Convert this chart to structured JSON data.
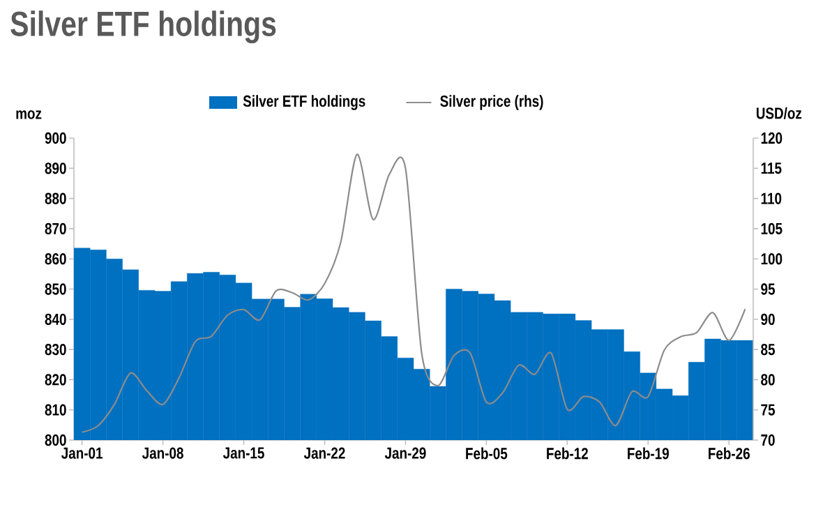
{
  "chart_data": {
    "type": "bar",
    "title": "Silver ETF holdings",
    "ylabel": "moz",
    "y2label": "USD/oz",
    "categories": [
      "Jan-01",
      null,
      null,
      null,
      null,
      "Jan-08",
      null,
      null,
      null,
      null,
      "Jan-15",
      null,
      null,
      null,
      null,
      "Jan-22",
      null,
      null,
      null,
      null,
      "Jan-29",
      null,
      null,
      null,
      null,
      "Feb-05",
      null,
      null,
      null,
      null,
      "Feb-12",
      null,
      null,
      null,
      null,
      "Feb-19",
      null,
      null,
      null,
      null,
      "Feb-26",
      null
    ],
    "series": [
      {
        "name": "Silver ETF holdings",
        "color": "#0070c0",
        "values": [
          863.6,
          863.0,
          860.0,
          856.4,
          849.6,
          849.3,
          852.5,
          855.2,
          855.6,
          854.7,
          852.0,
          846.7,
          846.7,
          844.0,
          848.3,
          846.8,
          843.9,
          842.3,
          839.5,
          834.3,
          827.2,
          823.5,
          817.8,
          850.0,
          849.3,
          848.4,
          846.2,
          842.3,
          842.3,
          841.8,
          841.8,
          839.6,
          836.6,
          836.6,
          829.3,
          822.2,
          816.9,
          814.7,
          825.8,
          833.5,
          833.0,
          833.0
        ]
      },
      {
        "name": "Silver price (rhs)",
        "type": "line",
        "axis": "y2",
        "color": "#8c8c8c",
        "values": [
          71.3,
          72.4,
          75.9,
          81.1,
          78.2,
          75.9,
          80.3,
          86.3,
          87.2,
          90.7,
          91.6,
          89.9,
          94.7,
          94.4,
          93.2,
          95.9,
          102.8,
          117.3,
          106.5,
          114.0,
          115.0,
          84.4,
          79.0,
          84.0,
          84.4,
          76.3,
          77.8,
          82.4,
          80.9,
          84.4,
          75.1,
          77.2,
          76.3,
          72.4,
          78.0,
          77.2,
          84.9,
          87.1,
          87.8,
          91.1,
          86.5,
          91.7
        ]
      }
    ],
    "ylim": [
      800,
      900
    ],
    "yticks": [
      800,
      810,
      820,
      830,
      840,
      850,
      860,
      870,
      880,
      890,
      900
    ],
    "y2lim": [
      70,
      120
    ],
    "y2ticks": [
      70,
      75,
      80,
      85,
      90,
      95,
      100,
      105,
      110,
      115,
      120
    ],
    "grid": false,
    "legend": "top"
  }
}
